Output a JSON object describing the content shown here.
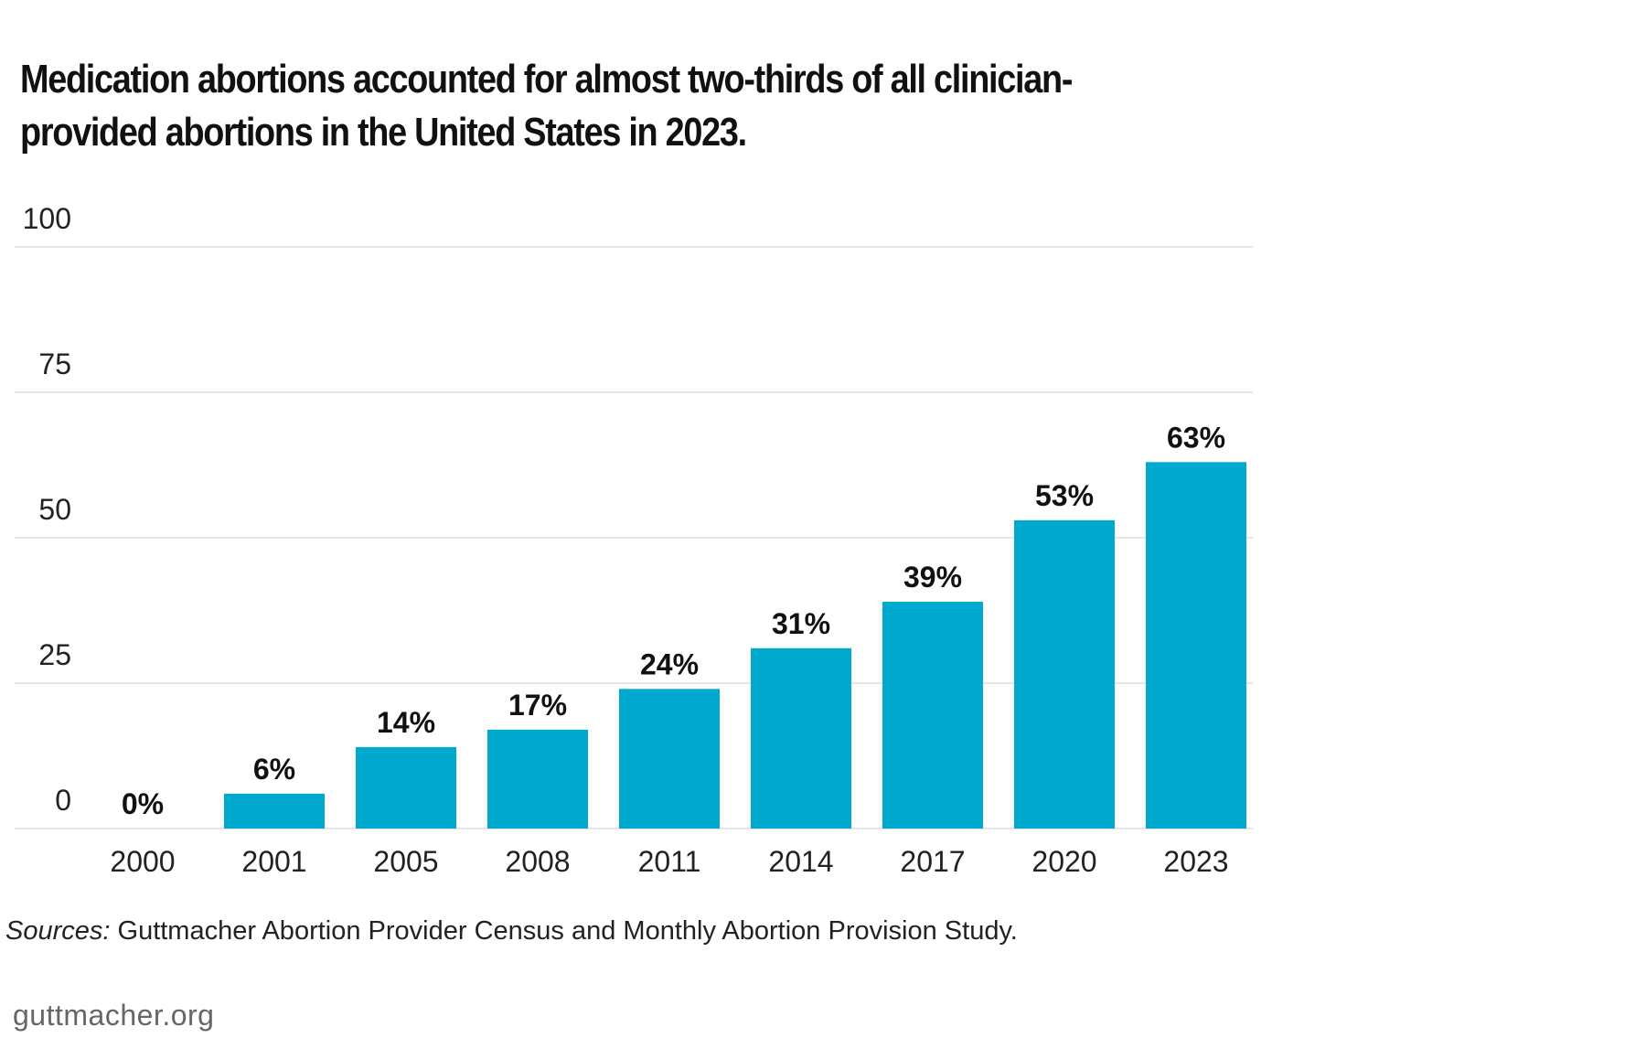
{
  "chart_data": {
    "type": "bar",
    "title": "Medication abortions accounted for almost two-thirds of all clinician-provided abortions in the United States in 2023.",
    "categories": [
      "2000",
      "2001",
      "2005",
      "2008",
      "2011",
      "2014",
      "2017",
      "2020",
      "2023"
    ],
    "values": [
      0,
      6,
      14,
      17,
      24,
      31,
      39,
      53,
      63
    ],
    "data_labels": [
      "0%",
      "6%",
      "14%",
      "17%",
      "24%",
      "31%",
      "39%",
      "53%",
      "63%"
    ],
    "yticks": [
      "0",
      "25",
      "50",
      "75",
      "100"
    ],
    "ylim": [
      0,
      100
    ],
    "grid": true,
    "bar_color": "#00A9CE"
  },
  "source": {
    "label": "Sources:",
    "text": " Guttmacher Abortion Provider Census and Monthly Abortion Provision Study."
  },
  "footer": "guttmacher.org"
}
